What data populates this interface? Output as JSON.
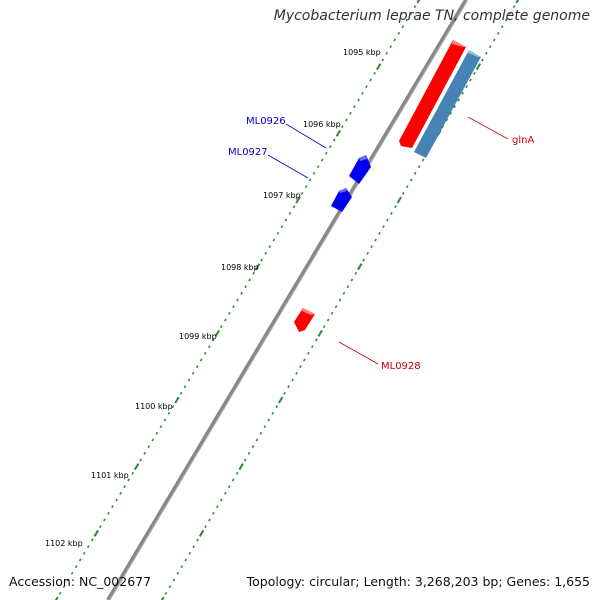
{
  "title": "Mycobacterium leprae TN, complete genome",
  "accession": "Accession: NC_002677",
  "stats": "Topology: circular; Length: 3,268,203 bp; Genes: 1,655",
  "colors": {
    "backbone": "#888888",
    "ticks": "#2a8a2a",
    "gene_forward": "#ff0000",
    "gene_reverse": "#0000ee",
    "gene_rna": "#4682b4",
    "label_blue": "#0000cc",
    "label_red": "#cc0000"
  },
  "kbp_labels": [
    "1095 kbp",
    "1096 kbp",
    "1097 kbp",
    "1098 kbp",
    "1099 kbp",
    "1100 kbp",
    "1101 kbp",
    "1102 kbp"
  ],
  "genes": [
    {
      "name": "glnA",
      "strand": "forward",
      "color_key": "gene_forward"
    },
    {
      "name": "glnA",
      "strand": "forward",
      "color_key": "gene_rna"
    },
    {
      "name": "ML0926",
      "strand": "reverse",
      "color_key": "gene_reverse"
    },
    {
      "name": "ML0927",
      "strand": "reverse",
      "color_key": "gene_reverse"
    },
    {
      "name": "ML0928",
      "strand": "forward",
      "color_key": "gene_forward"
    }
  ],
  "gene_labels": {
    "ML0926": "ML0926",
    "ML0927": "ML0927",
    "glnA": "glnA",
    "ML0928": "ML0928"
  }
}
